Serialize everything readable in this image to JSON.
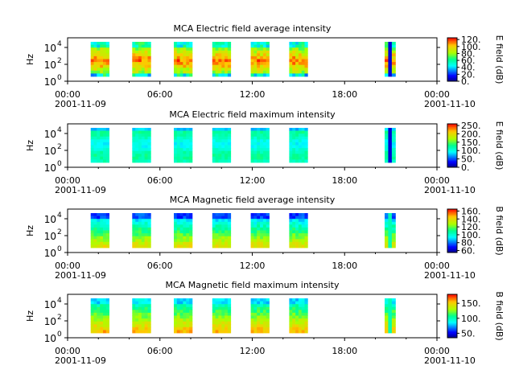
{
  "chart_data": [
    {
      "type": "heatmap",
      "title": "MCA  Electric field average intensity",
      "ylabel": "Hz",
      "colorbar_label": "E field (dB)",
      "colorbar_ticks": [
        "0.",
        "20.",
        "40.",
        "60.",
        "80.",
        "100.",
        "120."
      ],
      "colorbar_range": [
        0,
        125
      ],
      "x_ticks": [
        "00:00",
        "06:00",
        "12:00",
        "18:00",
        "00:00"
      ],
      "x_dates": [
        "2001-11-09",
        "2001-11-10"
      ],
      "y_ticks": [
        "10^0",
        "10^2",
        "10^4"
      ],
      "y_scale": "log",
      "style": "ea",
      "segments": [
        [
          1.5,
          2.7
        ],
        [
          4.2,
          5.4
        ],
        [
          6.9,
          8.1
        ],
        [
          9.4,
          10.6
        ],
        [
          11.9,
          13.1
        ],
        [
          14.4,
          15.6
        ],
        [
          20.6,
          21.3
        ]
      ]
    },
    {
      "type": "heatmap",
      "title": "MCA  Electric field maximum intensity",
      "ylabel": "Hz",
      "colorbar_label": "E field (dB)",
      "colorbar_ticks": [
        "0.",
        "50.",
        "100.",
        "150.",
        "200.",
        "250."
      ],
      "colorbar_range": [
        0,
        260
      ],
      "x_ticks": [
        "00:00",
        "06:00",
        "12:00",
        "18:00",
        "00:00"
      ],
      "x_dates": [
        "2001-11-09",
        "2001-11-10"
      ],
      "y_ticks": [
        "10^0",
        "10^2",
        "10^4"
      ],
      "y_scale": "log",
      "style": "em",
      "segments": [
        [
          1.5,
          2.7
        ],
        [
          4.2,
          5.4
        ],
        [
          6.9,
          8.1
        ],
        [
          9.4,
          10.6
        ],
        [
          11.9,
          13.1
        ],
        [
          14.4,
          15.6
        ],
        [
          20.6,
          21.3
        ]
      ]
    },
    {
      "type": "heatmap",
      "title": "MCA  Magnetic field average intensity",
      "ylabel": "Hz",
      "colorbar_label": "B field (dB)",
      "colorbar_ticks": [
        "60.",
        "80.",
        "100.",
        "120.",
        "140.",
        "160."
      ],
      "colorbar_range": [
        55,
        165
      ],
      "x_ticks": [
        "00:00",
        "06:00",
        "12:00",
        "18:00",
        "00:00"
      ],
      "x_dates": [
        "2001-11-09",
        "2001-11-10"
      ],
      "y_ticks": [
        "10^0",
        "10^2",
        "10^4"
      ],
      "y_scale": "log",
      "style": "ba",
      "segments": [
        [
          1.5,
          2.7
        ],
        [
          4.2,
          5.4
        ],
        [
          6.9,
          8.1
        ],
        [
          9.4,
          10.6
        ],
        [
          11.9,
          13.1
        ],
        [
          14.4,
          15.6
        ],
        [
          20.6,
          21.3
        ]
      ]
    },
    {
      "type": "heatmap",
      "title": "MCA  Magnetic field maximum intensity",
      "ylabel": "Hz",
      "colorbar_label": "B field (dB)",
      "colorbar_ticks": [
        "50.",
        "100.",
        "150."
      ],
      "colorbar_range": [
        35,
        180
      ],
      "x_ticks": [
        "00:00",
        "06:00",
        "12:00",
        "18:00",
        "00:00"
      ],
      "x_dates": [
        "2001-11-09",
        "2001-11-10"
      ],
      "y_ticks": [
        "10^0",
        "10^2",
        "10^4"
      ],
      "y_scale": "log",
      "style": "bm",
      "segments": [
        [
          1.5,
          2.7
        ],
        [
          4.2,
          5.4
        ],
        [
          6.9,
          8.1
        ],
        [
          9.4,
          10.6
        ],
        [
          11.9,
          13.1
        ],
        [
          14.4,
          15.6
        ],
        [
          20.6,
          21.3
        ]
      ]
    }
  ]
}
